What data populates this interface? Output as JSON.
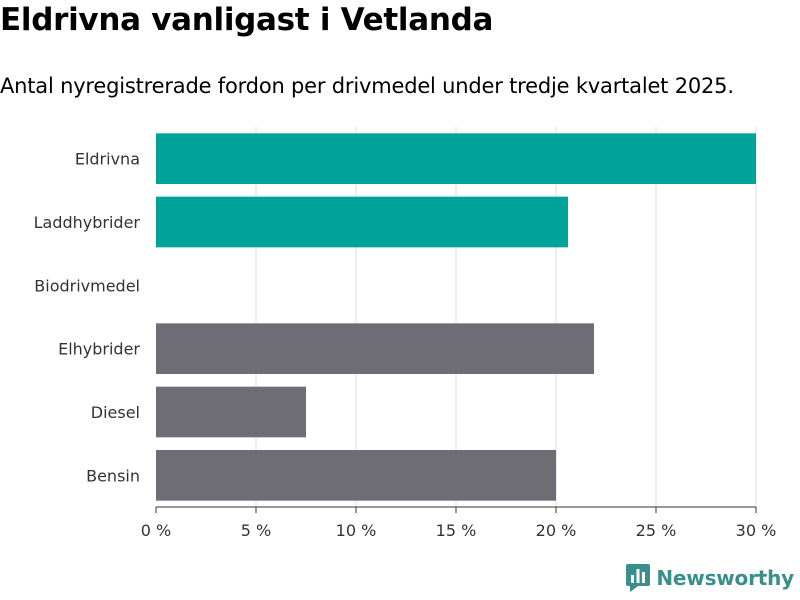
{
  "title": "Eldrivna vanligast i Vetlanda",
  "subtitle": "Antal nyregistrerade fordon per drivmedel under tredje kvartalet 2025.",
  "brand": {
    "name": "Newsworthy",
    "color": "#3a8f8a"
  },
  "colors": {
    "highlight": "#00a399",
    "neutral": "#6e6d75",
    "grid": "#dddddd",
    "axis": "#333333"
  },
  "chart_data": {
    "type": "bar",
    "orientation": "horizontal",
    "title": "Eldrivna vanligast i Vetlanda",
    "subtitle": "Antal nyregistrerade fordon per drivmedel under tredje kvartalet 2025.",
    "categories": [
      "Eldrivna",
      "Laddhybrider",
      "Biodrivmedel",
      "Elhybrider",
      "Diesel",
      "Bensin"
    ],
    "values": [
      30.0,
      20.6,
      0,
      21.9,
      7.5,
      20.0
    ],
    "highlight": [
      true,
      true,
      false,
      false,
      false,
      false
    ],
    "xlabel": "",
    "ylabel": "",
    "xlim": [
      0,
      30
    ],
    "ticks": [
      0,
      5,
      10,
      15,
      20,
      25,
      30
    ],
    "tick_labels": [
      "0 %",
      "5 %",
      "10 %",
      "15 %",
      "20 %",
      "25 %",
      "30 %"
    ],
    "grid": true,
    "legend": "none"
  }
}
